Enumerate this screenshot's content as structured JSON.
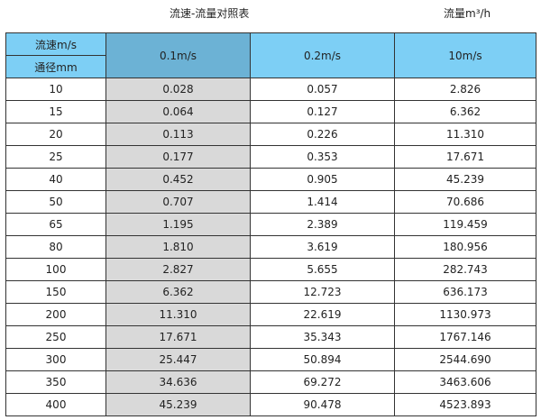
{
  "title": "流速-流量对照表",
  "unit": "流量m³/h",
  "header": {
    "velocity_label": "流速m/s",
    "diameter_label": "通径mm",
    "columns": [
      "0.1m/s",
      "0.2m/s",
      "10m/s"
    ]
  },
  "rows": [
    [
      "10",
      "0.028",
      "0.057",
      "2.826"
    ],
    [
      "15",
      "0.064",
      "0.127",
      "6.362"
    ],
    [
      "20",
      "0.113",
      "0.226",
      "11.310"
    ],
    [
      "25",
      "0.177",
      "0.353",
      "17.671"
    ],
    [
      "40",
      "0.452",
      "0.905",
      "45.239"
    ],
    [
      "50",
      "0.707",
      "1.414",
      "70.686"
    ],
    [
      "65",
      "1.195",
      "2.389",
      "119.459"
    ],
    [
      "80",
      "1.810",
      "3.619",
      "180.956"
    ],
    [
      "100",
      "2.827",
      "5.655",
      "282.743"
    ],
    [
      "150",
      "6.362",
      "12.723",
      "636.173"
    ],
    [
      "200",
      "11.310",
      "22.619",
      "1130.973"
    ],
    [
      "250",
      "17.671",
      "35.343",
      "1767.146"
    ],
    [
      "300",
      "25.447",
      "50.894",
      "2544.690"
    ],
    [
      "350",
      "34.636",
      "69.272",
      "3463.606"
    ],
    [
      "400",
      "45.239",
      "90.478",
      "4523.893"
    ]
  ],
  "colors": {
    "header": "#7dcff5",
    "highlight_header": "#6cb2d5",
    "highlight_column": "#d9d9d9"
  }
}
